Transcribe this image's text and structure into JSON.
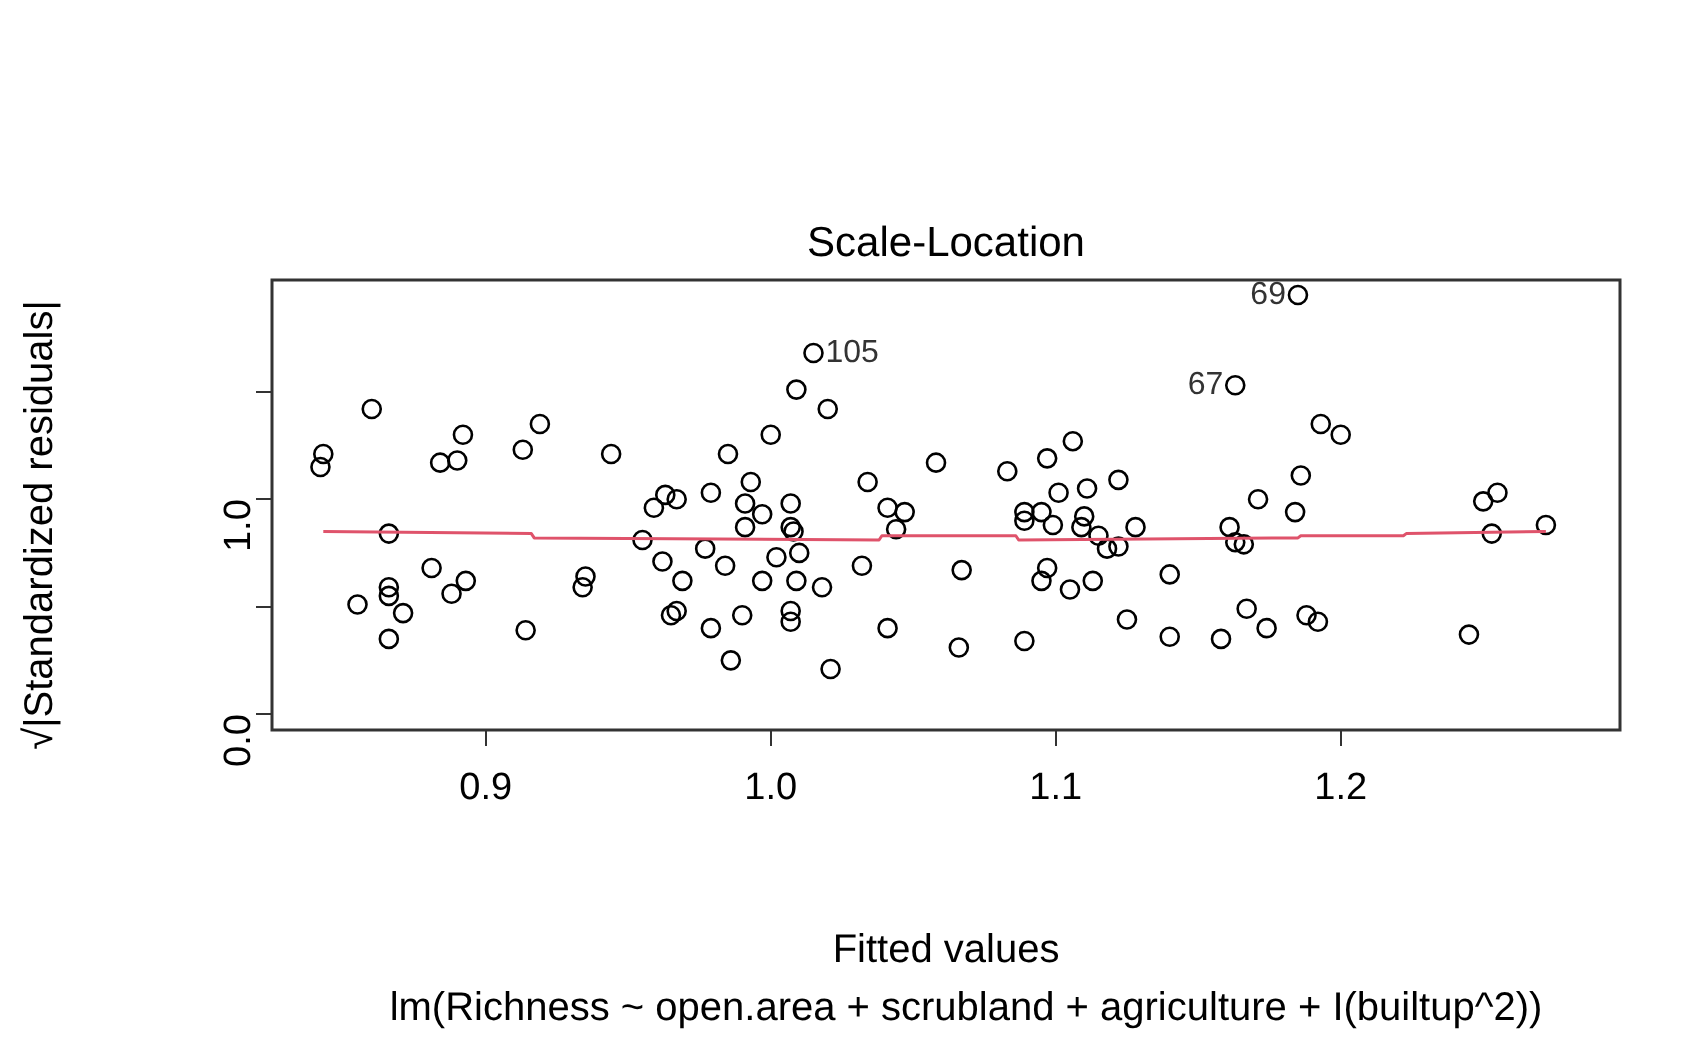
{
  "chart_data": {
    "type": "scatter",
    "title": "Scale-Location",
    "subtitle": "lm(Richness ~ open.area + scrubland + agriculture + I(builtup^2))",
    "xlabel": "Fitted values",
    "ylabel": "√|Standardized residuals|",
    "xlim": [
      0.825,
      1.298
    ],
    "xticks": [
      0.9,
      {
        "value": 1.0,
        "label": "1.0"
      },
      1.1,
      1.2
    ],
    "ylim": [
      -0.074,
      2.02
    ],
    "yticks": [
      {
        "value": 0,
        "label": "0.0"
      },
      {
        "value": 0.5,
        "label": null
      },
      {
        "value": 1.0,
        "label": "1.0"
      },
      {
        "value": 1.5,
        "label": null
      }
    ],
    "series": [
      {
        "type": "scatter",
        "color": "#000000",
        "marker": "circle",
        "x": [
          0.843,
          0.842,
          0.86,
          0.884,
          0.89,
          0.892,
          0.913,
          0.919,
          0.944,
          0.866,
          0.855,
          0.866,
          0.866,
          0.871,
          0.866,
          0.881,
          0.888,
          0.893,
          0.914,
          0.935,
          0.934,
          0.955,
          0.959,
          0.963,
          0.967,
          0.979,
          0.962,
          0.969,
          0.977,
          0.965,
          0.967,
          0.979,
          1.015,
          1.009,
          1.02,
          1.0,
          0.985,
          0.993,
          0.991,
          0.997,
          1.007,
          0.991,
          1.007,
          1.008,
          1.002,
          1.01,
          0.984,
          0.997,
          1.009,
          1.018,
          0.99,
          1.007,
          1.007,
          0.986,
          1.021,
          1.034,
          1.032,
          1.041,
          1.047,
          1.044,
          1.058,
          1.041,
          1.067,
          1.066,
          1.083,
          1.097,
          1.106,
          1.089,
          1.095,
          1.089,
          1.099,
          1.101,
          1.111,
          1.122,
          1.11,
          1.109,
          1.115,
          1.118,
          1.122,
          1.128,
          1.097,
          1.095,
          1.105,
          1.113,
          1.14,
          1.089,
          1.125,
          1.14,
          1.185,
          1.163,
          1.193,
          1.2,
          1.186,
          1.171,
          1.184,
          1.161,
          1.163,
          1.166,
          1.167,
          1.174,
          1.188,
          1.192,
          1.158,
          1.25,
          1.255,
          1.253,
          1.272,
          1.245
        ],
        "values": [
          1.21,
          1.15,
          1.42,
          1.17,
          1.18,
          1.3,
          1.23,
          1.35,
          1.21,
          0.84,
          0.51,
          0.59,
          0.55,
          0.47,
          0.35,
          0.68,
          0.56,
          0.62,
          0.39,
          0.64,
          0.59,
          0.81,
          0.96,
          1.02,
          1.0,
          1.03,
          0.71,
          0.62,
          0.77,
          0.46,
          0.48,
          0.4,
          1.68,
          1.51,
          1.42,
          1.3,
          1.21,
          1.08,
          0.98,
          0.93,
          0.98,
          0.87,
          0.87,
          0.85,
          0.73,
          0.75,
          0.69,
          0.62,
          0.62,
          0.59,
          0.46,
          0.48,
          0.43,
          0.25,
          0.21,
          1.08,
          0.69,
          0.96,
          0.94,
          0.86,
          1.17,
          0.4,
          0.67,
          0.31,
          1.13,
          1.19,
          1.27,
          0.94,
          0.94,
          0.9,
          0.88,
          1.03,
          1.05,
          1.09,
          0.92,
          0.87,
          0.83,
          0.77,
          0.78,
          0.87,
          0.68,
          0.62,
          0.58,
          0.62,
          0.65,
          0.34,
          0.44,
          0.36,
          1.95,
          1.53,
          1.35,
          1.3,
          1.11,
          1.0,
          0.94,
          0.87,
          0.8,
          0.79,
          0.49,
          0.4,
          0.46,
          0.43,
          0.35,
          0.99,
          1.03,
          0.84,
          0.88,
          0.37
        ]
      },
      {
        "type": "line",
        "color": "#df536b",
        "x": [
          0.843,
          0.916,
          0.917,
          1.038,
          1.039,
          1.086,
          1.087,
          1.185,
          1.186,
          1.222,
          1.223,
          1.272
        ],
        "values": [
          0.85,
          0.84,
          0.82,
          0.81,
          0.83,
          0.83,
          0.81,
          0.82,
          0.83,
          0.83,
          0.84,
          0.85
        ]
      }
    ],
    "annotations": [
      {
        "text": "105",
        "x": 1.015,
        "y": 1.68
      },
      {
        "text": "69",
        "x": 1.185,
        "y": 1.95
      },
      {
        "text": "67",
        "x": 1.163,
        "y": 1.53
      }
    ]
  }
}
